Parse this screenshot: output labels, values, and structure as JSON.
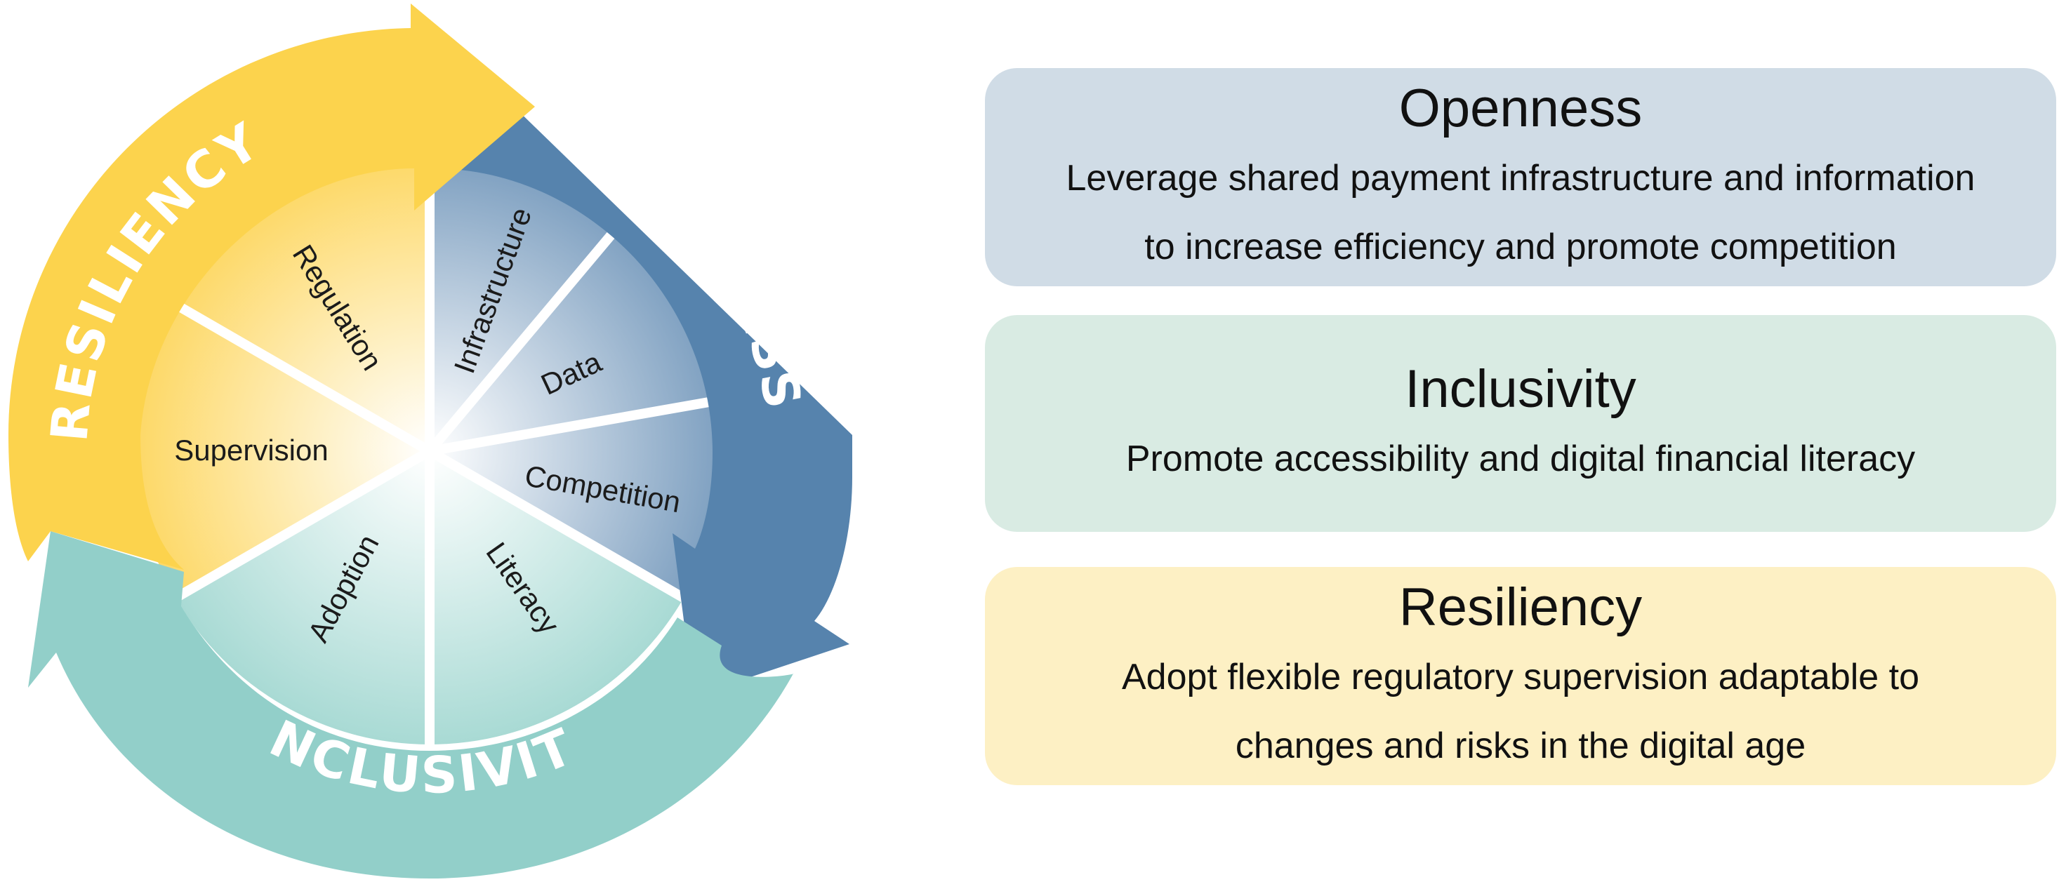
{
  "colors": {
    "openness_dark": "#5683ad",
    "openness_light": "#d0dce6",
    "inclusivity_dark": "#92cfc9",
    "inclusivity_light": "#d9ebe3",
    "resiliency_dark": "#fcd34d",
    "resiliency_light": "#fdf0c4"
  },
  "wheel": {
    "ring_labels": {
      "openness": "OPENNESS",
      "inclusivity": "INCLUSIVITY",
      "resiliency": "RESILIENCY"
    },
    "wedges": {
      "infrastructure": "Infrastructure",
      "data": "Data",
      "competition": "Competition",
      "literacy": "Literacy",
      "adoption": "Adoption",
      "supervision": "Supervision",
      "regulation": "Regulation"
    }
  },
  "cards": {
    "openness": {
      "title": "Openness",
      "lines": [
        "Leverage shared payment infrastructure and information",
        "to increase efficiency and promote competition"
      ]
    },
    "inclusivity": {
      "title": "Inclusivity",
      "lines": [
        "Promote accessibility and digital financial literacy"
      ]
    },
    "resiliency": {
      "title": "Resiliency",
      "lines": [
        "Adopt flexible regulatory supervision adaptable to",
        "changes and risks in the digital age"
      ]
    }
  }
}
